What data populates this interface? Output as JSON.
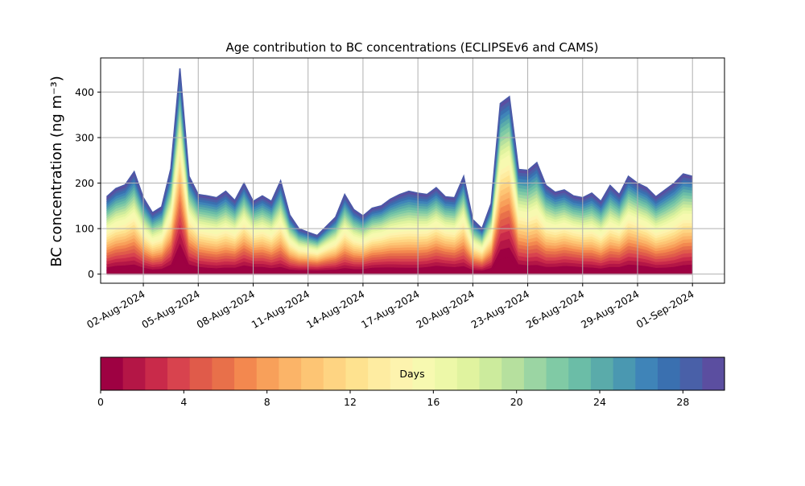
{
  "chart_data": {
    "type": "area",
    "title": "Age contribution to BC concentrations (ECLIPSEv6 and CAMS)",
    "ylabel": "BC concentration (ng m⁻³)",
    "xlabel": "",
    "ylim": [
      -20,
      475
    ],
    "yticks": [
      0,
      100,
      200,
      300,
      400
    ],
    "xlim": [
      "2024-07-30T16:00",
      "2024-09-02T18:00"
    ],
    "xticks": [
      "2024-08-02",
      "2024-08-05",
      "2024-08-08",
      "2024-08-11",
      "2024-08-14",
      "2024-08-17",
      "2024-08-20",
      "2024-08-23",
      "2024-08-26",
      "2024-08-29",
      "2024-09-01"
    ],
    "xtick_labels": [
      "02-Aug-2024",
      "05-Aug-2024",
      "08-Aug-2024",
      "11-Aug-2024",
      "14-Aug-2024",
      "17-Aug-2024",
      "20-Aug-2024",
      "23-Aug-2024",
      "26-Aug-2024",
      "29-Aug-2024",
      "01-Sep-2024"
    ],
    "grid": true,
    "stacked_by": "age (days)",
    "age_bins": 30,
    "total": {
      "x": [
        "2024-07-31T00:00",
        "2024-07-31T12:00",
        "2024-08-01T00:00",
        "2024-08-01T12:00",
        "2024-08-02T00:00",
        "2024-08-02T12:00",
        "2024-08-03T00:00",
        "2024-08-03T12:00",
        "2024-08-04T00:00",
        "2024-08-04T12:00",
        "2024-08-05T00:00",
        "2024-08-05T12:00",
        "2024-08-06T00:00",
        "2024-08-06T12:00",
        "2024-08-07T00:00",
        "2024-08-07T12:00",
        "2024-08-08T00:00",
        "2024-08-08T12:00",
        "2024-08-09T00:00",
        "2024-08-09T12:00",
        "2024-08-10T00:00",
        "2024-08-10T12:00",
        "2024-08-11T00:00",
        "2024-08-11T12:00",
        "2024-08-12T00:00",
        "2024-08-12T12:00",
        "2024-08-13T00:00",
        "2024-08-13T12:00",
        "2024-08-14T00:00",
        "2024-08-14T12:00",
        "2024-08-15T00:00",
        "2024-08-15T12:00",
        "2024-08-16T00:00",
        "2024-08-16T12:00",
        "2024-08-17T00:00",
        "2024-08-17T12:00",
        "2024-08-18T00:00",
        "2024-08-18T12:00",
        "2024-08-19T00:00",
        "2024-08-19T12:00",
        "2024-08-20T00:00",
        "2024-08-20T12:00",
        "2024-08-21T00:00",
        "2024-08-21T12:00",
        "2024-08-22T00:00",
        "2024-08-22T12:00",
        "2024-08-23T00:00",
        "2024-08-23T12:00",
        "2024-08-24T00:00",
        "2024-08-24T12:00",
        "2024-08-25T00:00",
        "2024-08-25T12:00",
        "2024-08-26T00:00",
        "2024-08-26T12:00",
        "2024-08-27T00:00",
        "2024-08-27T12:00",
        "2024-08-28T00:00",
        "2024-08-28T12:00",
        "2024-08-29T00:00",
        "2024-08-29T12:00",
        "2024-08-30T00:00",
        "2024-08-30T12:00",
        "2024-08-31T00:00",
        "2024-08-31T12:00",
        "2024-09-01T00:00"
      ],
      "y": [
        170,
        188,
        196,
        225,
        168,
        135,
        148,
        232,
        452,
        215,
        175,
        172,
        168,
        182,
        162,
        200,
        160,
        172,
        160,
        205,
        130,
        100,
        92,
        85,
        105,
        125,
        175,
        142,
        128,
        145,
        150,
        165,
        175,
        182,
        178,
        175,
        190,
        170,
        168,
        215,
        120,
        100,
        155,
        375,
        390,
        230,
        228,
        245,
        195,
        180,
        185,
        172,
        168,
        178,
        160,
        195,
        175,
        215,
        200,
        190,
        170,
        185,
        200,
        220,
        215
      ]
    },
    "colorbar": {
      "label": "Days",
      "range": [
        0,
        30
      ],
      "ticks": [
        0,
        4,
        8,
        12,
        16,
        20,
        24,
        28
      ],
      "colors": [
        "#9e0142",
        "#b41646",
        "#c92a4a",
        "#d8434e",
        "#e05b4a",
        "#e8704a",
        "#f3884f",
        "#f8a05a",
        "#fbb468",
        "#fdc574",
        "#fed482",
        "#fee28f",
        "#feeca1",
        "#fdf3ae",
        "#f7f9b0",
        "#edf8a8",
        "#e0f39f",
        "#cceb9d",
        "#b6e09e",
        "#9bd5a3",
        "#80caa5",
        "#6bbda7",
        "#5aabaa",
        "#4a98b1",
        "#3f84b8",
        "#3a70b0",
        "#4960a8",
        "#5b4ea0"
      ]
    }
  }
}
